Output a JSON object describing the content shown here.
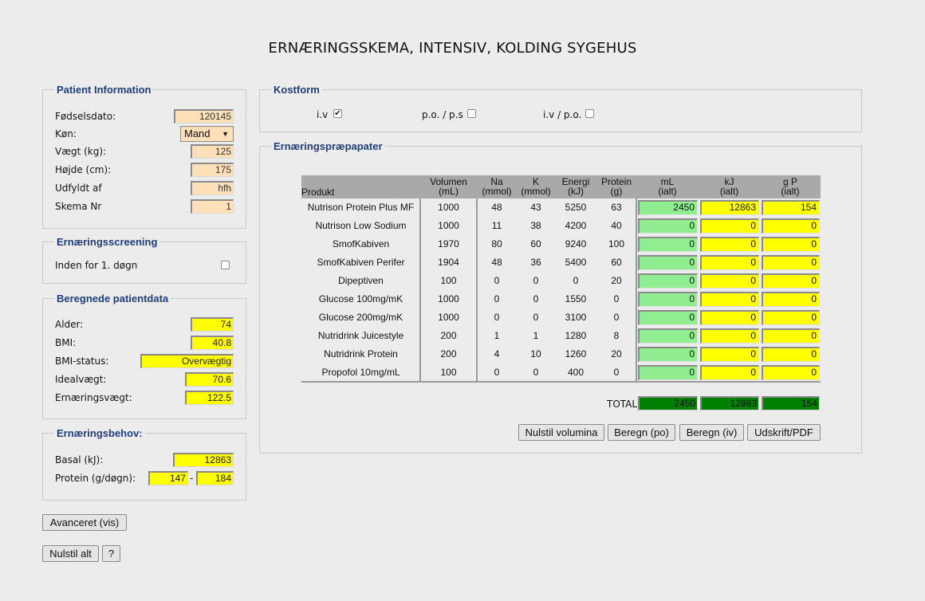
{
  "page_title": "ERNÆRINGSSKEMA, INTENSIV, KOLDING SYGEHUS",
  "patient_info": {
    "legend": "Patient Information",
    "birthdate_label": "Fødselsdato:",
    "birthdate_value": "120145",
    "gender_label": "Køn:",
    "gender_value": "Mand",
    "weight_label": "Vægt (kg):",
    "weight_value": "125",
    "height_label": "Højde (cm):",
    "height_value": "175",
    "filled_by_label": "Udfyldt af",
    "filled_by_value": "hfh",
    "schema_nr_label": "Skema Nr",
    "schema_nr_value": "1"
  },
  "screening": {
    "legend": "Ernæringsscreening",
    "within_label": "Inden for 1. døgn",
    "within_checked": false
  },
  "calculated": {
    "legend": "Beregnede patientdata",
    "age_label": "Alder:",
    "age_value": "74",
    "bmi_label": "BMI:",
    "bmi_value": "40.8",
    "bmi_status_label": "BMI-status:",
    "bmi_status_value": "Overvægtig",
    "ideal_weight_label": "Idealvægt:",
    "ideal_weight_value": "70.6",
    "nutrition_weight_label": "Ernæringsvægt:",
    "nutrition_weight_value": "122.5"
  },
  "needs": {
    "legend": "Ernæringsbehov:",
    "basal_label": "Basal (kJ):",
    "basal_value": "12863",
    "protein_label": "Protein (g/døgn):",
    "protein_min": "147",
    "protein_dash": "-",
    "protein_max": "184"
  },
  "buttons": {
    "advanced": "Avanceret (vis)",
    "reset_all": "Nulstil alt",
    "help": "?",
    "reset_volumes": "Nulstil volumina",
    "calc_po": "Beregn (po)",
    "calc_iv": "Beregn (iv)",
    "print_pdf": "Udskrift/PDF"
  },
  "kostform": {
    "legend": "Kostform",
    "iv_label": "i.v",
    "iv_checked": true,
    "po_ps_label": "p.o. / p.s",
    "po_ps_checked": false,
    "iv_po_label": "i.v / p.o.",
    "iv_po_checked": false
  },
  "preparations": {
    "legend": "Ernæringspræpapater",
    "headers": {
      "product": "Produkt",
      "volume": [
        "Volumen",
        "(mL)"
      ],
      "na": [
        "Na",
        "(mmol)"
      ],
      "k": [
        "K",
        "(mmol)"
      ],
      "energy": [
        "Energi",
        "(kJ)"
      ],
      "protein": [
        "Protein",
        "(g)"
      ],
      "ml_total": [
        "mL",
        "(ialt)"
      ],
      "kj_total": [
        "kJ",
        "(ialt)"
      ],
      "gp_total": [
        "g P",
        "(ialt)"
      ]
    },
    "rows": [
      {
        "name": "Nutrison Protein Plus MF",
        "volume": "1000",
        "na": "48",
        "k": "43",
        "energy": "5250",
        "protein": "63",
        "ml": "2450",
        "kj": "12863",
        "gp": "154"
      },
      {
        "name": "Nutrison Low Sodium",
        "volume": "1000",
        "na": "11",
        "k": "38",
        "energy": "4200",
        "protein": "40",
        "ml": "0",
        "kj": "0",
        "gp": "0"
      },
      {
        "name": "SmofKabiven",
        "volume": "1970",
        "na": "80",
        "k": "60",
        "energy": "9240",
        "protein": "100",
        "ml": "0",
        "kj": "0",
        "gp": "0"
      },
      {
        "name": "SmofKabiven Perifer",
        "volume": "1904",
        "na": "48",
        "k": "36",
        "energy": "5400",
        "protein": "60",
        "ml": "0",
        "kj": "0",
        "gp": "0"
      },
      {
        "name": "Dipeptiven",
        "volume": "100",
        "na": "0",
        "k": "0",
        "energy": "0",
        "protein": "20",
        "ml": "0",
        "kj": "0",
        "gp": "0"
      },
      {
        "name": "Glucose 100mg/mK",
        "volume": "1000",
        "na": "0",
        "k": "0",
        "energy": "1550",
        "protein": "0",
        "ml": "0",
        "kj": "0",
        "gp": "0"
      },
      {
        "name": "Glucose 200mg/mK",
        "volume": "1000",
        "na": "0",
        "k": "0",
        "energy": "3100",
        "protein": "0",
        "ml": "0",
        "kj": "0",
        "gp": "0"
      },
      {
        "name": "Nutridrink Juicestyle",
        "volume": "200",
        "na": "1",
        "k": "1",
        "energy": "1280",
        "protein": "8",
        "ml": "0",
        "kj": "0",
        "gp": "0"
      },
      {
        "name": "Nutridrink Protein",
        "volume": "200",
        "na": "4",
        "k": "10",
        "energy": "1260",
        "protein": "20",
        "ml": "0",
        "kj": "0",
        "gp": "0"
      },
      {
        "name": "Propofol 10mg/mL",
        "volume": "100",
        "na": "0",
        "k": "0",
        "energy": "400",
        "protein": "0",
        "ml": "0",
        "kj": "0",
        "gp": "0"
      }
    ],
    "total_label": "TOTAL",
    "total_ml": "2450",
    "total_kj": "12863",
    "total_gp": "154"
  },
  "colors": {
    "legend_text": "#1f3d7a",
    "input_peach": "#fde0b8",
    "computed_yellow": "#ffff00",
    "volume_green": "#90ee90",
    "total_green": "#008000",
    "table_header": "#a9a9a9"
  }
}
